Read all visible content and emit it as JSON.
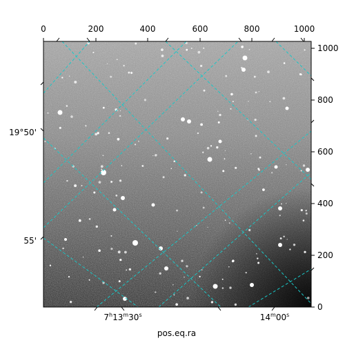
{
  "image_plot": {
    "xlabel": "pos.eq.ra",
    "top_ticks": [
      "0",
      "200",
      "400",
      "600",
      "800",
      "1000"
    ],
    "right_ticks": [
      "0",
      "200",
      "400",
      "600",
      "800",
      "1000"
    ],
    "ra_ticks": [
      {
        "h": "7",
        "m": "13",
        "s": "30"
      },
      {
        "m": "14",
        "s": "00"
      }
    ],
    "dec_ticks": [
      "19°50'",
      "55'"
    ],
    "grid_color": "#19c8c8",
    "colormap": "gray"
  }
}
